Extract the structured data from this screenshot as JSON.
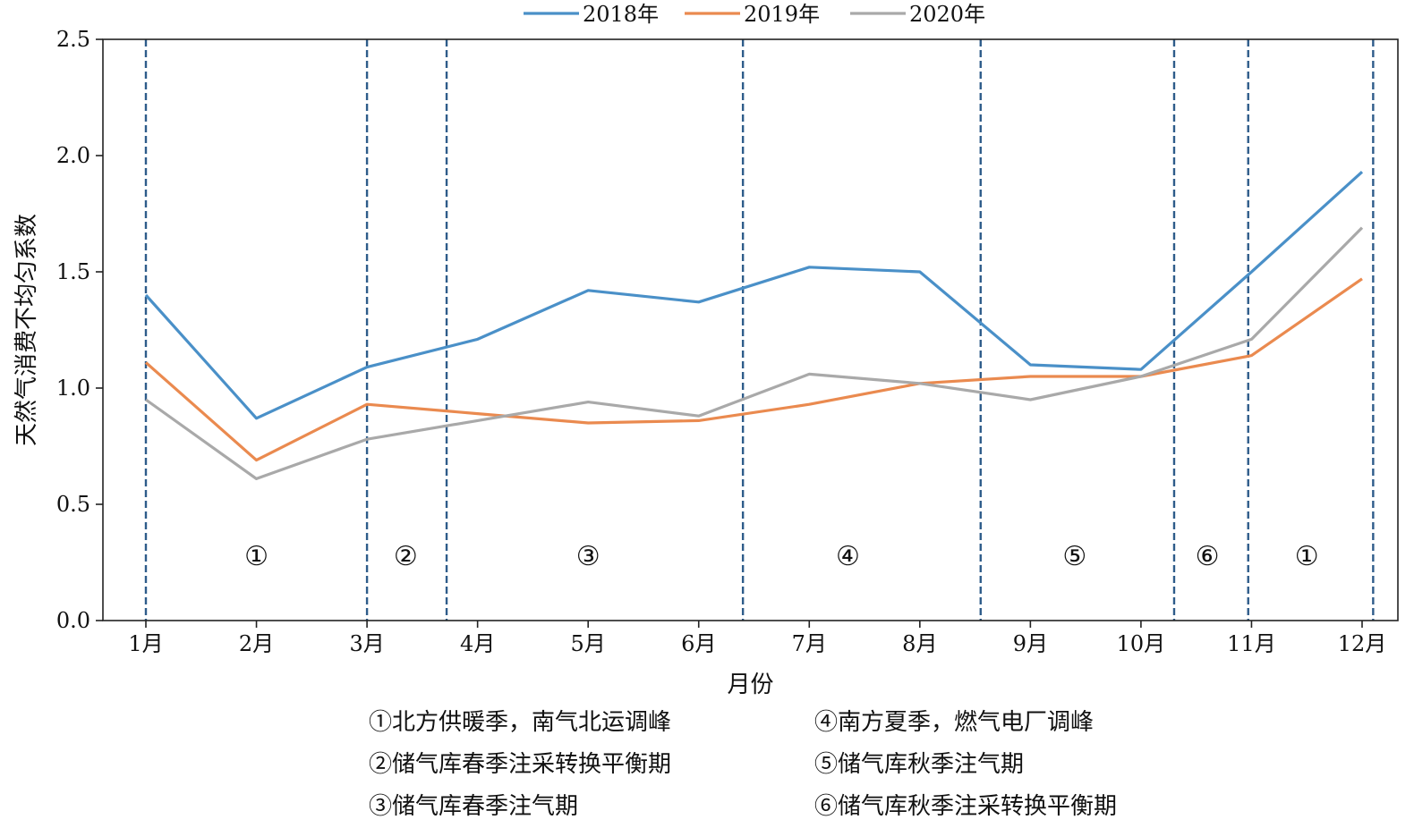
{
  "chart_data": {
    "type": "line",
    "categories": [
      "1月",
      "2月",
      "3月",
      "4月",
      "5月",
      "6月",
      "7月",
      "8月",
      "9月",
      "10月",
      "11月",
      "12月"
    ],
    "xlabel": "月份",
    "ylabel": "天然气消费不均匀系数",
    "ylim": [
      0,
      2.5
    ],
    "yticks": [
      "0.0",
      "0.5",
      "1.0",
      "1.5",
      "2.0",
      "2.5"
    ],
    "grid": false,
    "legend_position": "top",
    "series": [
      {
        "name": "2018年",
        "color": "#4a90c8",
        "values": [
          1.4,
          0.87,
          1.09,
          1.21,
          1.42,
          1.37,
          1.52,
          1.5,
          1.1,
          1.08,
          1.5,
          1.93
        ]
      },
      {
        "name": "2019年",
        "color": "#ea8a4f",
        "values": [
          1.11,
          0.69,
          0.93,
          0.89,
          0.85,
          0.86,
          0.93,
          1.02,
          1.05,
          1.05,
          1.14,
          1.47
        ]
      },
      {
        "name": "2020年",
        "color": "#a9a9a9",
        "values": [
          0.95,
          0.61,
          0.78,
          0.86,
          0.94,
          0.88,
          1.06,
          1.02,
          0.95,
          1.05,
          1.21,
          1.69
        ]
      }
    ],
    "phase_dividers_month": [
      1.0,
      3.0,
      3.72,
      6.4,
      8.55,
      10.3,
      10.97,
      12.1
    ],
    "phases": [
      {
        "label": "①",
        "at_month": 2.0
      },
      {
        "label": "②",
        "at_month": 3.35
      },
      {
        "label": "③",
        "at_month": 5.0
      },
      {
        "label": "④",
        "at_month": 7.35
      },
      {
        "label": "⑤",
        "at_month": 9.4
      },
      {
        "label": "⑥",
        "at_month": 10.6
      },
      {
        "label": "①",
        "at_month": 11.5
      }
    ],
    "notes": [
      "①北方供暖季，南气北运调峰",
      "④南方夏季，燃气电厂调峰",
      "②储气库春季注采转换平衡期",
      "⑤储气库秋季注气期",
      "③储气库春季注气期",
      "⑥储气库秋季注采转换平衡期"
    ],
    "divider_color": "#2e5c8a"
  }
}
